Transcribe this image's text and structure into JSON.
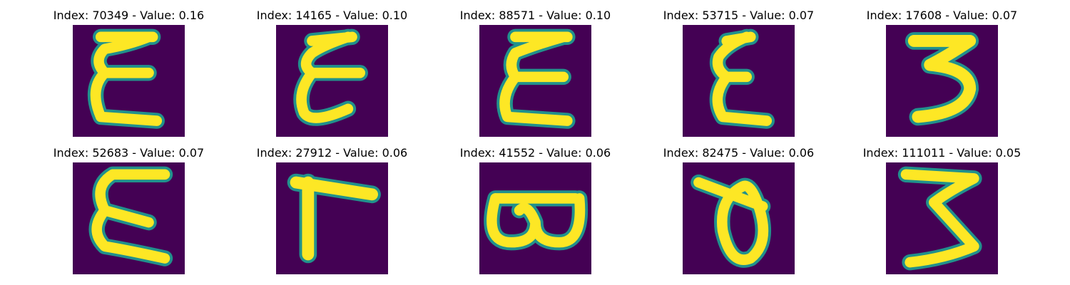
{
  "figure": {
    "colors": {
      "background": "#440154",
      "stroke_core": "#fde725",
      "stroke_edge": "#21918c"
    },
    "samples": [
      {
        "title": "Index: 70349 - Value: 0.16",
        "glyph": "epsilon",
        "index": 70349,
        "value": 0.16
      },
      {
        "title": "Index: 14165 - Value: 0.10",
        "glyph": "epsilon-slanted",
        "index": 14165,
        "value": 0.1
      },
      {
        "title": "Index: 88571 - Value: 0.10",
        "glyph": "epsilon-wide",
        "index": 88571,
        "value": 0.1
      },
      {
        "title": "Index: 53715 - Value: 0.07",
        "glyph": "epsilon-small",
        "index": 53715,
        "value": 0.07
      },
      {
        "title": "Index: 17608 - Value: 0.07",
        "glyph": "three",
        "index": 17608,
        "value": 0.07
      },
      {
        "title": "Index: 52683 - Value: 0.07",
        "glyph": "epsilon-tall",
        "index": 52683,
        "value": 0.07
      },
      {
        "title": "Index: 27912 - Value: 0.06",
        "glyph": "gamma",
        "index": 27912,
        "value": 0.06
      },
      {
        "title": "Index: 41552 - Value: 0.06",
        "glyph": "omega",
        "index": 41552,
        "value": 0.06
      },
      {
        "title": "Index: 82475 - Value: 0.06",
        "glyph": "theta",
        "index": 82475,
        "value": 0.06
      },
      {
        "title": "Index: 111011 - Value: 0.05",
        "glyph": "three-flat",
        "index": 111011,
        "value": 0.05
      }
    ]
  }
}
